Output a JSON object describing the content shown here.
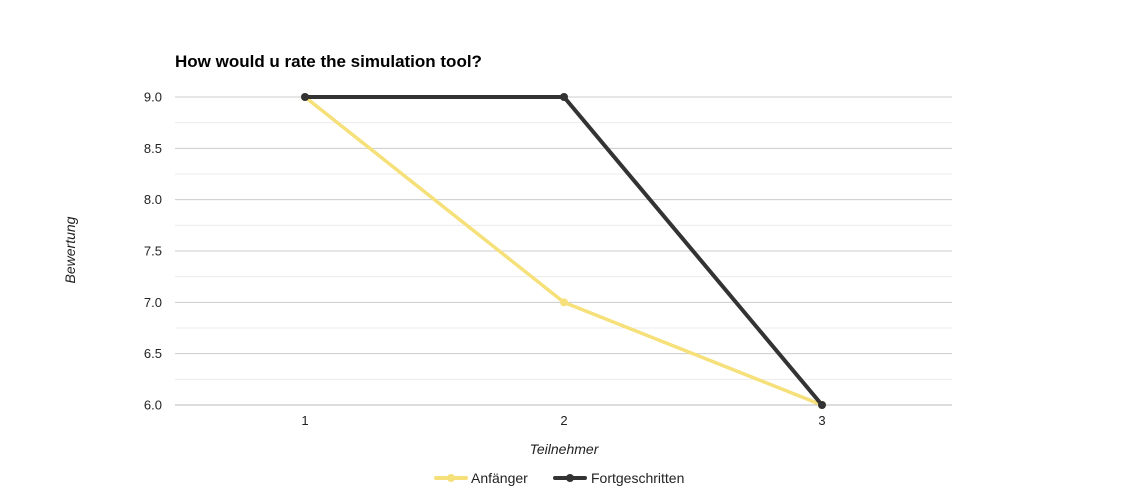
{
  "chart_data": {
    "type": "line",
    "title": "How would u rate the simulation tool?",
    "xlabel": "Teilnehmer",
    "ylabel": "Bewertung",
    "categories": [
      "1",
      "2",
      "3"
    ],
    "ylim": [
      6.0,
      9.0
    ],
    "yticks": [
      "9.0",
      "8.5",
      "8.0",
      "7.5",
      "7.0",
      "6.5",
      "6.0"
    ],
    "grid": true,
    "legend_position": "bottom",
    "series": [
      {
        "name": "Anfänger",
        "values": [
          9.0,
          7.0,
          6.0
        ],
        "color": "#f5e07a"
      },
      {
        "name": "Fortgeschritten",
        "values": [
          9.0,
          9.0,
          6.0
        ],
        "color": "#333333"
      }
    ]
  }
}
